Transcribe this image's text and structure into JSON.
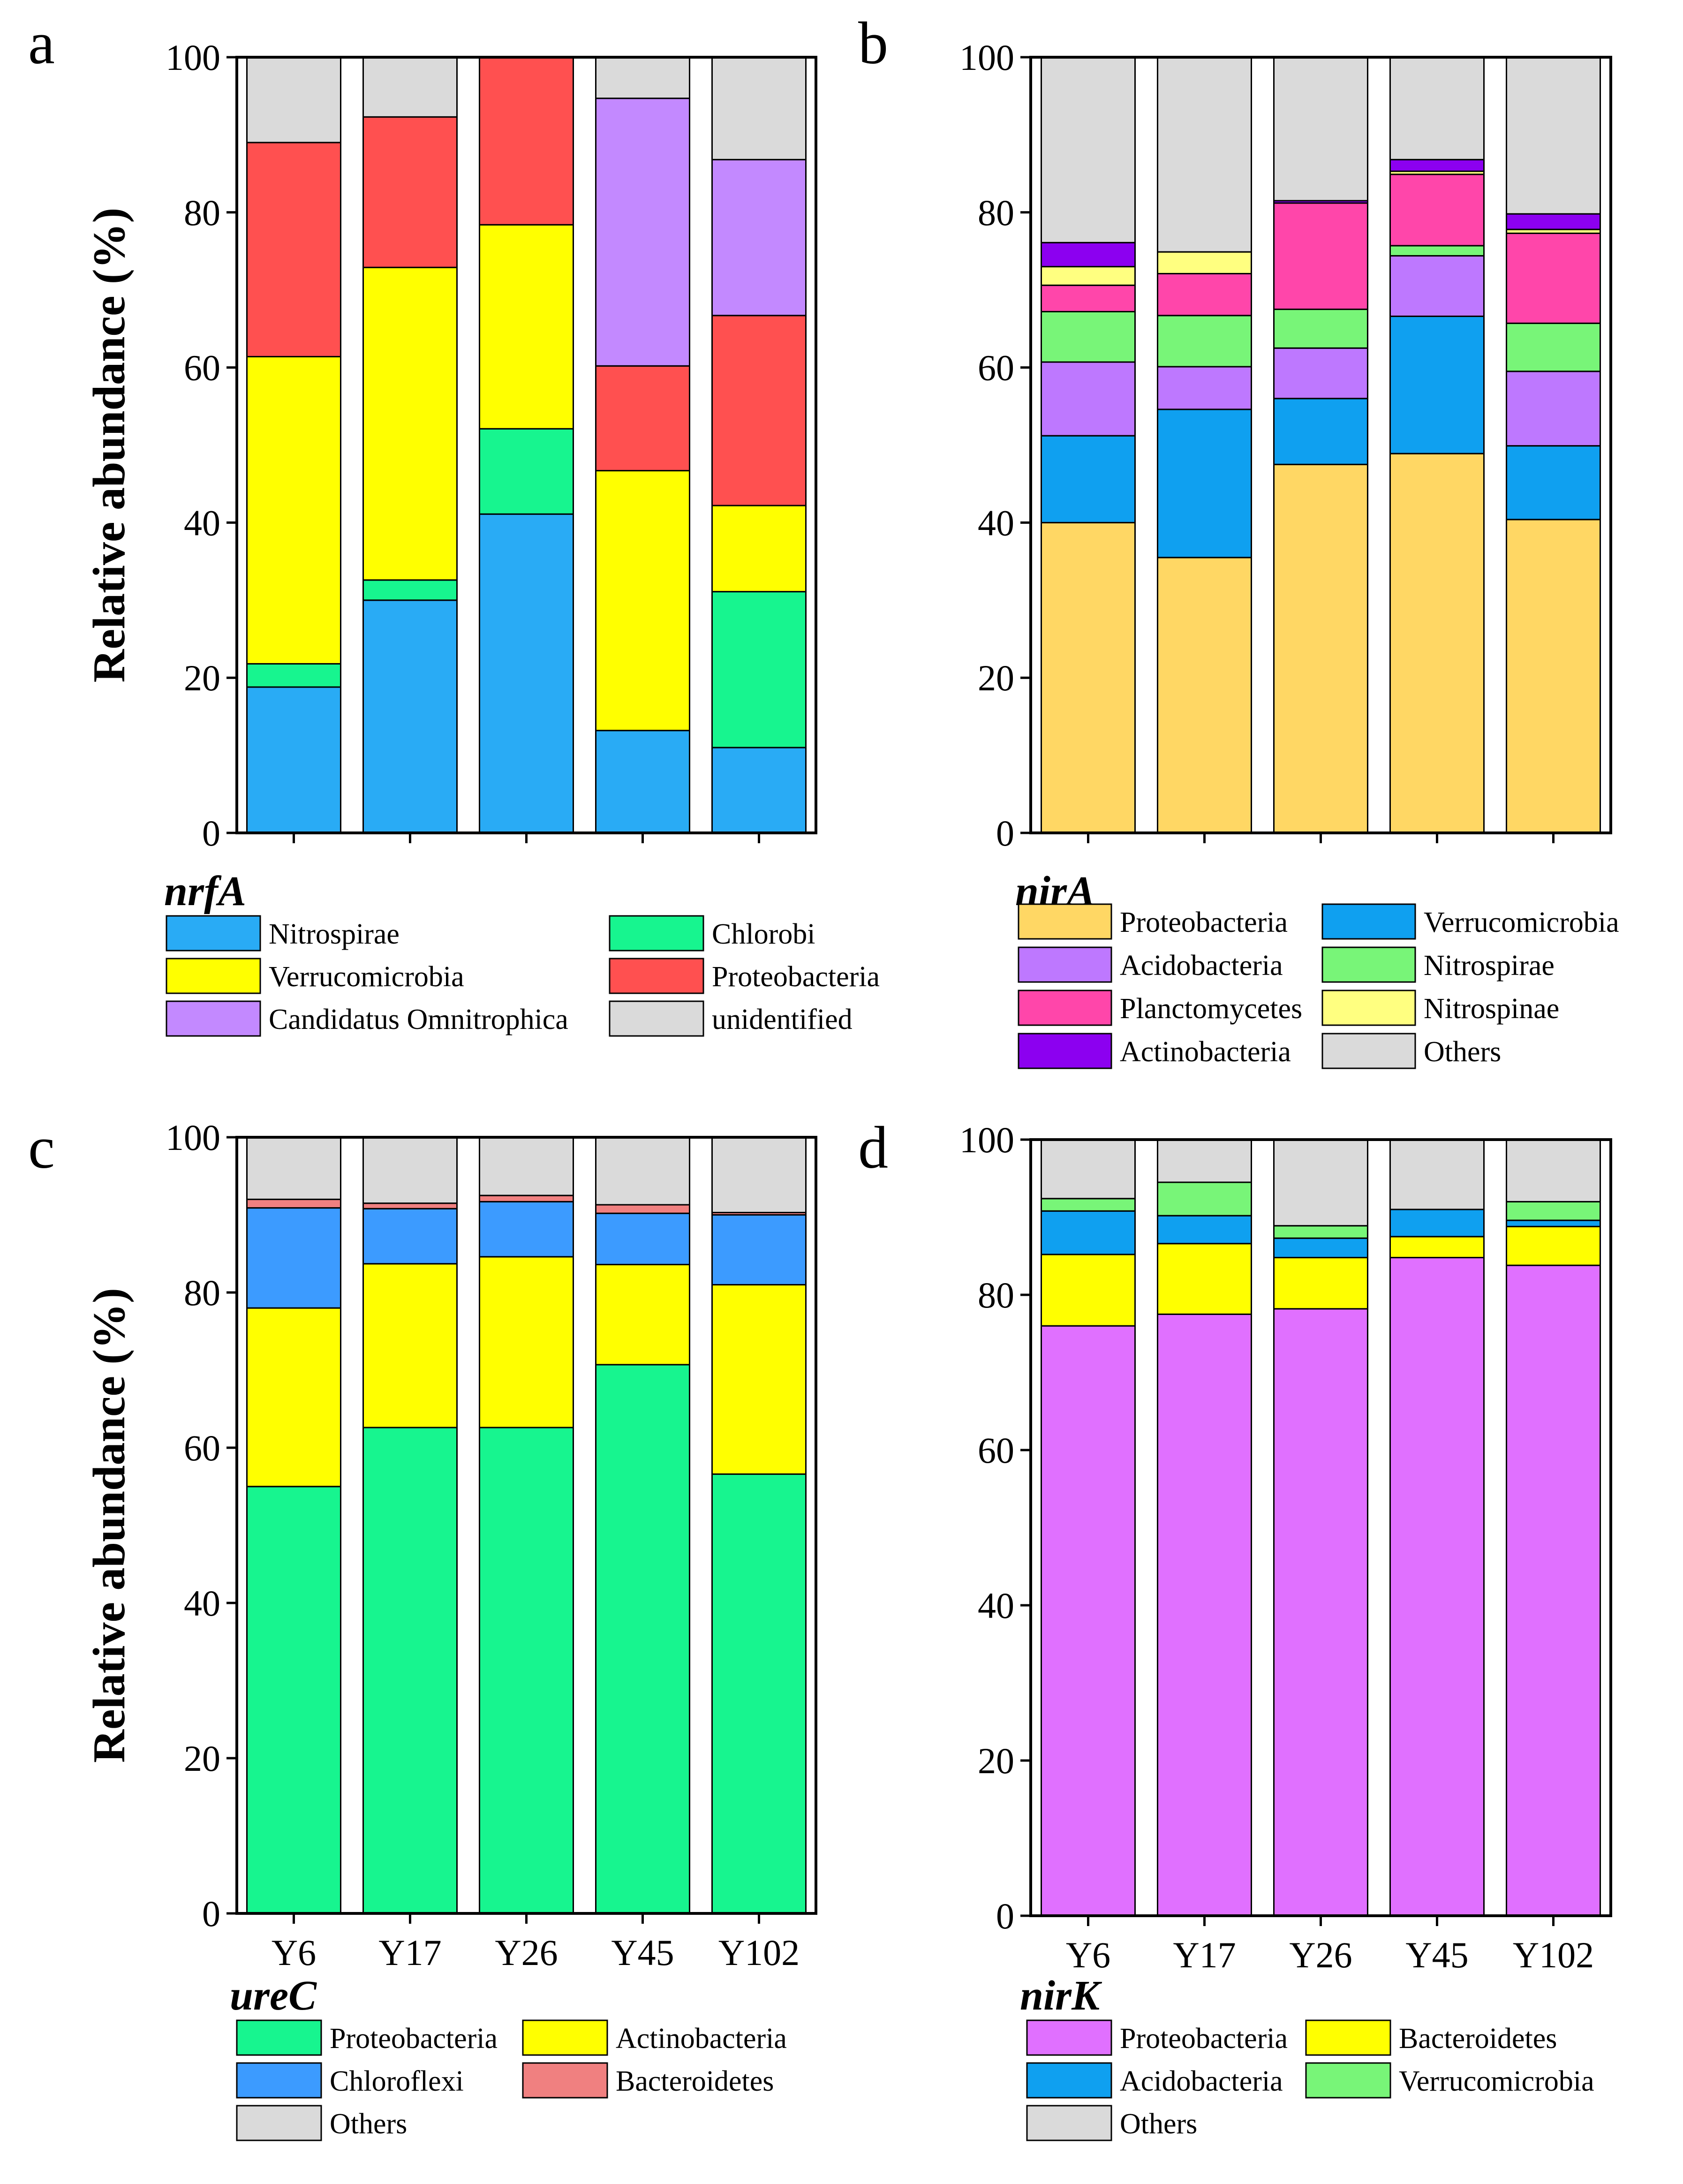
{
  "figure": {
    "y_axis_label": "Relative abundance (%)",
    "categories": [
      "Y6",
      "Y17",
      "Y26",
      "Y45",
      "Y102"
    ]
  },
  "chart_data": [
    {
      "type": "bar",
      "stacked": true,
      "panel": "a",
      "gene": "nrfA",
      "ylabel": "Relative abundance (%)",
      "ylim": [
        0,
        100
      ],
      "yticks": [
        0,
        20,
        40,
        60,
        80,
        100
      ],
      "categories": [
        "Y6",
        "Y17",
        "Y26",
        "Y45",
        "Y102"
      ],
      "series": [
        {
          "name": "Nitrospirae",
          "color": "#29abf5",
          "values": [
            18.8,
            30.0,
            41.1,
            13.2,
            11.0
          ]
        },
        {
          "name": "Chlorobi",
          "color": "#17f58f",
          "values": [
            3.0,
            2.6,
            11.0,
            0.0,
            20.1
          ]
        },
        {
          "name": "Verrucomicrobia",
          "color": "#ffff00",
          "values": [
            39.6,
            40.3,
            26.3,
            33.5,
            11.1
          ]
        },
        {
          "name": "Proteobacteria",
          "color": "#ff5050",
          "values": [
            27.6,
            19.4,
            21.6,
            13.5,
            24.5
          ]
        },
        {
          "name": "Candidatus Omnitrophica",
          "color": "#c389ff",
          "values": [
            0.0,
            0.0,
            0.0,
            34.5,
            20.1
          ]
        },
        {
          "name": "unidentified",
          "color": "#dadada",
          "values": [
            11.0,
            7.7,
            0.0,
            5.3,
            13.2
          ]
        }
      ],
      "legend": [
        "Nitrospirae",
        "Chlorobi",
        "Verrucomicrobia",
        "Proteobacteria",
        "Candidatus Omnitrophica",
        "unidentified"
      ]
    },
    {
      "type": "bar",
      "stacked": true,
      "panel": "b",
      "gene": "nirA",
      "ylabel": "",
      "ylim": [
        0,
        100
      ],
      "yticks": [
        0,
        20,
        40,
        60,
        80,
        100
      ],
      "categories": [
        "Y6",
        "Y17",
        "Y26",
        "Y45",
        "Y102"
      ],
      "series": [
        {
          "name": "Proteobacteria",
          "color": "#ffd764",
          "values": [
            40.0,
            35.5,
            47.5,
            48.9,
            40.4
          ]
        },
        {
          "name": "Verrucomicrobia",
          "color": "#0fa0f0",
          "values": [
            11.2,
            19.1,
            8.5,
            17.7,
            9.5
          ]
        },
        {
          "name": "Acidobacteria",
          "color": "#be78ff",
          "values": [
            9.5,
            5.5,
            6.5,
            7.8,
            9.6
          ]
        },
        {
          "name": "Nitrospirae",
          "color": "#78f578",
          "values": [
            6.5,
            6.6,
            5.0,
            1.3,
            6.2
          ]
        },
        {
          "name": "Planctomycetes",
          "color": "#ff46aa",
          "values": [
            3.4,
            5.4,
            13.7,
            9.2,
            11.6
          ]
        },
        {
          "name": "Nitrospinae",
          "color": "#ffff80",
          "values": [
            2.4,
            2.8,
            0.0,
            0.4,
            0.5
          ]
        },
        {
          "name": "Actinobacteria",
          "color": "#8c00f0",
          "values": [
            3.1,
            0.0,
            0.3,
            1.5,
            2.0
          ]
        },
        {
          "name": "Others",
          "color": "#dadada",
          "values": [
            23.9,
            25.1,
            18.5,
            13.2,
            20.2
          ]
        }
      ],
      "legend": [
        "Proteobacteria",
        "Verrucomicrobia",
        "Acidobacteria",
        "Nitrospirae",
        "Planctomycetes",
        "Nitrospinae",
        "Actinobacteria",
        "Others"
      ]
    },
    {
      "type": "bar",
      "stacked": true,
      "panel": "c",
      "gene": "ureC",
      "ylabel": "Relative abundance (%)",
      "ylim": [
        0,
        100
      ],
      "yticks": [
        0,
        20,
        40,
        60,
        80,
        100
      ],
      "categories": [
        "Y6",
        "Y17",
        "Y26",
        "Y45",
        "Y102"
      ],
      "series": [
        {
          "name": "Proteobacteria",
          "color": "#17f58f",
          "values": [
            55.0,
            62.6,
            62.6,
            70.7,
            56.6
          ]
        },
        {
          "name": "Actinobacteria",
          "color": "#ffff00",
          "values": [
            23.0,
            21.1,
            22.0,
            12.9,
            24.4
          ]
        },
        {
          "name": "Chloroflexi",
          "color": "#3c9bff",
          "values": [
            12.9,
            7.1,
            7.1,
            6.6,
            9.0
          ]
        },
        {
          "name": "Bacteroidetes",
          "color": "#f08080",
          "values": [
            1.1,
            0.7,
            0.8,
            1.1,
            0.3
          ]
        },
        {
          "name": "Others",
          "color": "#dadada",
          "values": [
            8.0,
            8.5,
            7.5,
            8.7,
            9.7
          ]
        }
      ],
      "legend": [
        "Proteobacteria",
        "Actinobacteria",
        "Chloroflexi",
        "Bacteroidetes",
        "Others"
      ]
    },
    {
      "type": "bar",
      "stacked": true,
      "panel": "d",
      "gene": "nirK",
      "ylabel": "",
      "ylim": [
        0,
        100
      ],
      "yticks": [
        0,
        20,
        40,
        60,
        80,
        100
      ],
      "categories": [
        "Y6",
        "Y17",
        "Y26",
        "Y45",
        "Y102"
      ],
      "series": [
        {
          "name": "Proteobacteria",
          "color": "#e070ff",
          "values": [
            76.0,
            77.5,
            78.2,
            84.8,
            83.8
          ]
        },
        {
          "name": "Bacteroidetes",
          "color": "#ffff00",
          "values": [
            9.2,
            9.1,
            6.6,
            2.7,
            5.0
          ]
        },
        {
          "name": "Acidobacteria",
          "color": "#0fa0f0",
          "values": [
            5.6,
            3.6,
            2.5,
            3.5,
            0.8
          ]
        },
        {
          "name": "Verrucomicrobia",
          "color": "#78f578",
          "values": [
            1.6,
            4.3,
            1.6,
            0.0,
            2.4
          ]
        },
        {
          "name": "Others",
          "color": "#dadada",
          "values": [
            7.6,
            5.5,
            11.1,
            9.0,
            8.0
          ]
        }
      ],
      "legend": [
        "Proteobacteria",
        "Bacteroidetes",
        "Acidobacteria",
        "Verrucomicrobia",
        "Others"
      ]
    }
  ]
}
